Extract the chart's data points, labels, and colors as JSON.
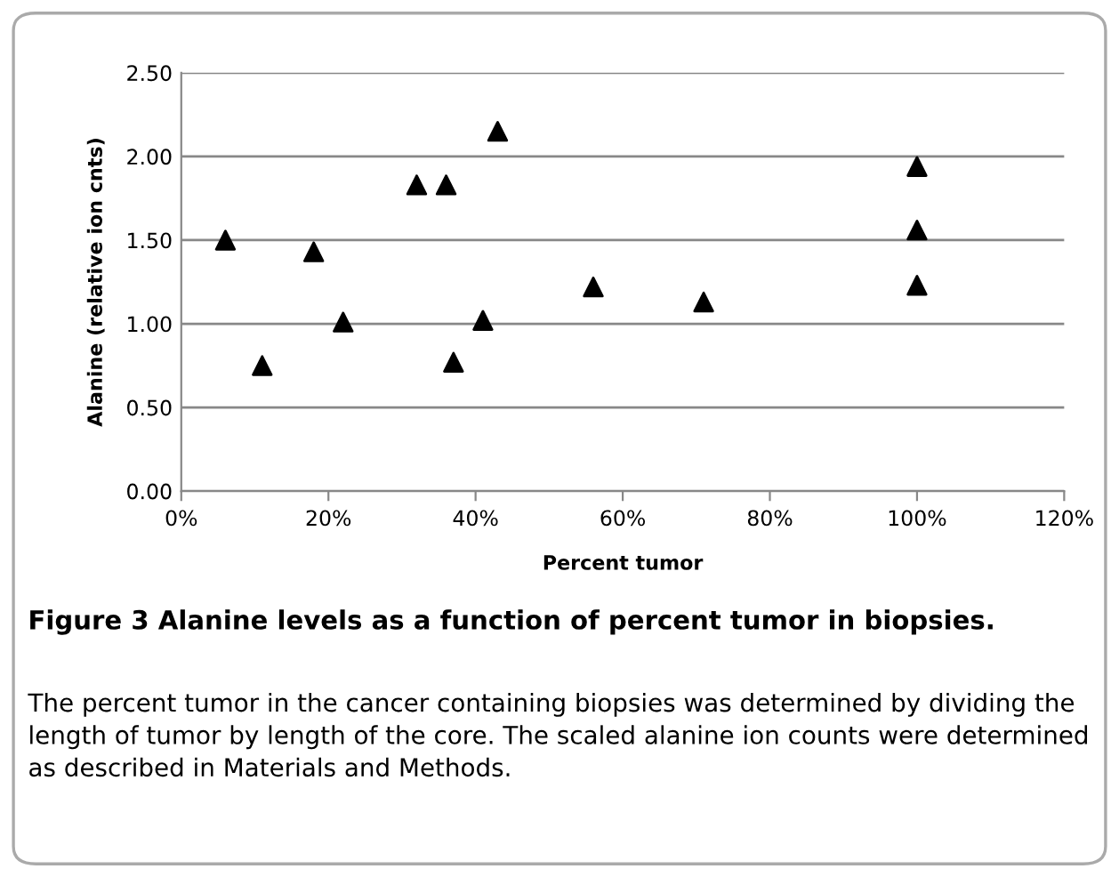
{
  "chart_data": {
    "type": "scatter",
    "title": "Figure 3 Alanine levels as a function of percent tumor in biopsies.",
    "xlabel": "Percent tumor",
    "ylabel": "Alanine (relative ion cnts)",
    "annotations": [
      "The percent tumor in the cancer containing biopsies was determined by dividing the length of tumor by length of the core. The scaled alanine ion counts were determined as described in Materials and Methods."
    ],
    "x": [
      6,
      11,
      18,
      22,
      32,
      36,
      37,
      41,
      43,
      56,
      71,
      100,
      100,
      100
    ],
    "series": [
      {
        "color": "#000000",
        "values": [
          1.5,
          0.75,
          1.43,
          1.01,
          1.83,
          1.83,
          0.77,
          1.02,
          2.15,
          1.22,
          1.13,
          1.94,
          1.56,
          1.23
        ]
      }
    ],
    "marker": "triangle",
    "grid": "y",
    "legend": false,
    "xlim": [
      0,
      120
    ],
    "xticks": [
      {
        "value": 0,
        "label": "0%"
      },
      {
        "value": 20,
        "label": "20%"
      },
      {
        "value": 40,
        "label": "40%"
      },
      {
        "value": 60,
        "label": "60%"
      },
      {
        "value": 80,
        "label": "80%"
      },
      {
        "value": 100,
        "label": "100%"
      },
      {
        "value": 120,
        "label": "120%"
      }
    ],
    "ylim": [
      0,
      2.5
    ],
    "yticks": [
      {
        "value": 0,
        "label": "0.00"
      },
      {
        "value": 0.5,
        "label": "0.50"
      },
      {
        "value": 1,
        "label": "1.00"
      },
      {
        "value": 1.5,
        "label": "1.50"
      },
      {
        "value": 2,
        "label": "2.00"
      },
      {
        "value": 2.5,
        "label": "2.50"
      }
    ]
  }
}
